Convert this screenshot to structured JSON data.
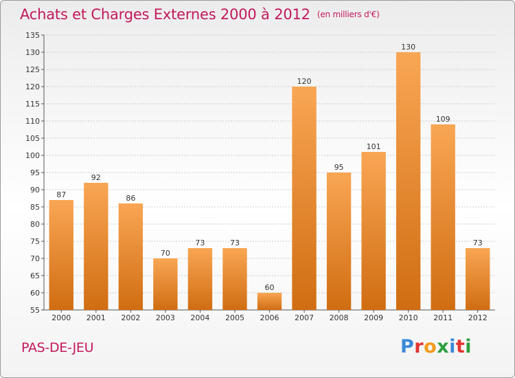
{
  "header": {
    "title": "Achats et Charges Externes 2000 à 2012",
    "subtitle": "(en milliers d'€)"
  },
  "footer": {
    "commune": "PAS-DE-JEU",
    "logo_letters": [
      "P",
      "r",
      "o",
      "x",
      "i",
      "t",
      "i"
    ]
  },
  "colors": {
    "title": "#c2185b",
    "bar_light": "#f9a654",
    "bar_dark": "#d06d12",
    "grid": "#cccccc",
    "logo": [
      "#3a8ad8",
      "#e3342f",
      "#f29b1d",
      "#2e9e3f",
      "#3a8ad8",
      "#e3342f",
      "#2e9e3f"
    ]
  },
  "chart_data": {
    "type": "bar",
    "categories": [
      "2000",
      "2001",
      "2002",
      "2003",
      "2004",
      "2005",
      "2006",
      "2007",
      "2008",
      "2009",
      "2010",
      "2011",
      "2012"
    ],
    "values": [
      87,
      92,
      86,
      70,
      73,
      73,
      60,
      120,
      95,
      101,
      130,
      109,
      73
    ],
    "ylim": [
      55,
      135
    ],
    "yticks": [
      55,
      60,
      65,
      70,
      75,
      80,
      85,
      90,
      95,
      100,
      105,
      110,
      115,
      120,
      125,
      130,
      135
    ],
    "grid": true,
    "data_labels": true
  }
}
